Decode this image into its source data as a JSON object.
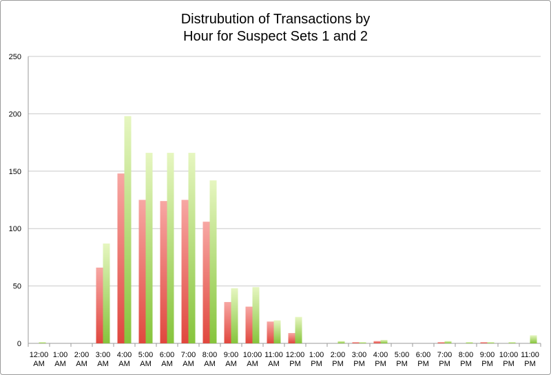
{
  "chart_data": {
    "type": "bar",
    "title_lines": [
      "Distrubution of Transactions by",
      "Hour for Suspect Sets 1 and 2"
    ],
    "xlabel": "",
    "ylabel": "",
    "ylim": [
      0,
      250
    ],
    "yticks": [
      "0",
      "50",
      "100",
      "150",
      "200",
      "250"
    ],
    "grid": true,
    "legend": "none",
    "categories": [
      [
        "12:00",
        "AM"
      ],
      [
        "1:00",
        "AM"
      ],
      [
        "2:00",
        "AM"
      ],
      [
        "3:00",
        "AM"
      ],
      [
        "4:00",
        "AM"
      ],
      [
        "5:00",
        "AM"
      ],
      [
        "6:00",
        "AM"
      ],
      [
        "7:00",
        "AM"
      ],
      [
        "8:00",
        "AM"
      ],
      [
        "9:00",
        "AM"
      ],
      [
        "10:00",
        "AM"
      ],
      [
        "11:00",
        "AM"
      ],
      [
        "12:00",
        "PM"
      ],
      [
        "1:00",
        "PM"
      ],
      [
        "2:00",
        "PM"
      ],
      [
        "3:00",
        "PM"
      ],
      [
        "4:00",
        "PM"
      ],
      [
        "5:00",
        "PM"
      ],
      [
        "6:00",
        "PM"
      ],
      [
        "7:00",
        "PM"
      ],
      [
        "8:00",
        "PM"
      ],
      [
        "9:00",
        "PM"
      ],
      [
        "10:00",
        "PM"
      ],
      [
        "11:00",
        "PM"
      ]
    ],
    "series": [
      {
        "color_top": "#f7a7a3",
        "color_bottom": "#e0473e",
        "values": [
          0,
          0,
          0,
          66,
          148,
          125,
          124,
          125,
          106,
          36,
          32,
          19,
          9,
          0,
          0,
          1,
          2,
          0,
          0,
          1,
          0,
          1,
          0,
          0
        ]
      },
      {
        "color_top": "#e6f6c0",
        "color_bottom": "#86c43c",
        "values": [
          1,
          0,
          0,
          87,
          198,
          166,
          166,
          166,
          142,
          48,
          49,
          20,
          23,
          0,
          2,
          1,
          3,
          0,
          0,
          2,
          1,
          1,
          1,
          7
        ]
      }
    ]
  }
}
